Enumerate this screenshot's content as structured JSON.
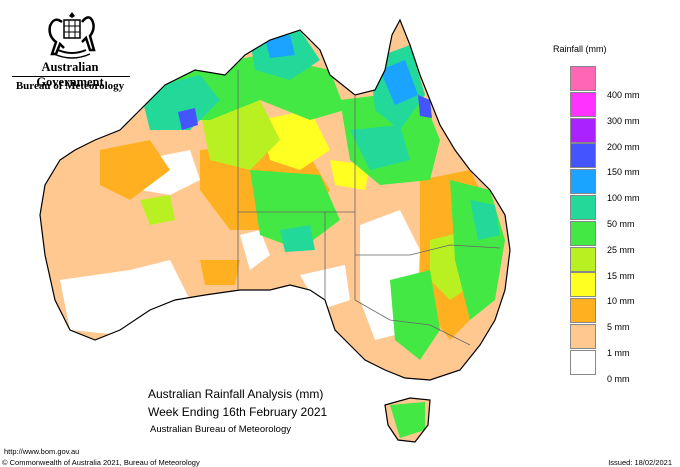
{
  "header": {
    "government": "Australian Government",
    "bureau": "Bureau of Meteorology",
    "crest_icon": "commonwealth-coat-of-arms-icon"
  },
  "legend": {
    "title": "Rainfall (mm)",
    "bands": [
      {
        "color": "#ff66b3",
        "label": "400 mm"
      },
      {
        "color": "#ff33ff",
        "label": "300 mm"
      },
      {
        "color": "#aa22ff",
        "label": "200 mm"
      },
      {
        "color": "#4455ff",
        "label": "150 mm"
      },
      {
        "color": "#1aa3ff",
        "label": "100 mm"
      },
      {
        "color": "#22d99a",
        "label": "50 mm"
      },
      {
        "color": "#44e844",
        "label": "25 mm"
      },
      {
        "color": "#b8f022",
        "label": "15 mm"
      },
      {
        "color": "#ffff22",
        "label": "10 mm"
      },
      {
        "color": "#ffb020",
        "label": "5 mm"
      },
      {
        "color": "#ffc890",
        "label": "1 mm"
      },
      {
        "color": "#ffffff",
        "label": "0 mm"
      }
    ]
  },
  "map": {
    "land_base_color": "#ffc890",
    "dry_color": "#ffffff",
    "coast_color": "#000000",
    "border_color": "#666666"
  },
  "titles": {
    "line1": "Australian Rainfall Analysis (mm)",
    "line2": "Week Ending 16th February 2021",
    "line3": "Australian Bureau of Meteorology"
  },
  "footer": {
    "url": "http://www.bom.gov.au",
    "copyright": "© Commonwealth of Australia 2021, Bureau of Meteorology",
    "issued": "Issued: 18/02/2021"
  }
}
